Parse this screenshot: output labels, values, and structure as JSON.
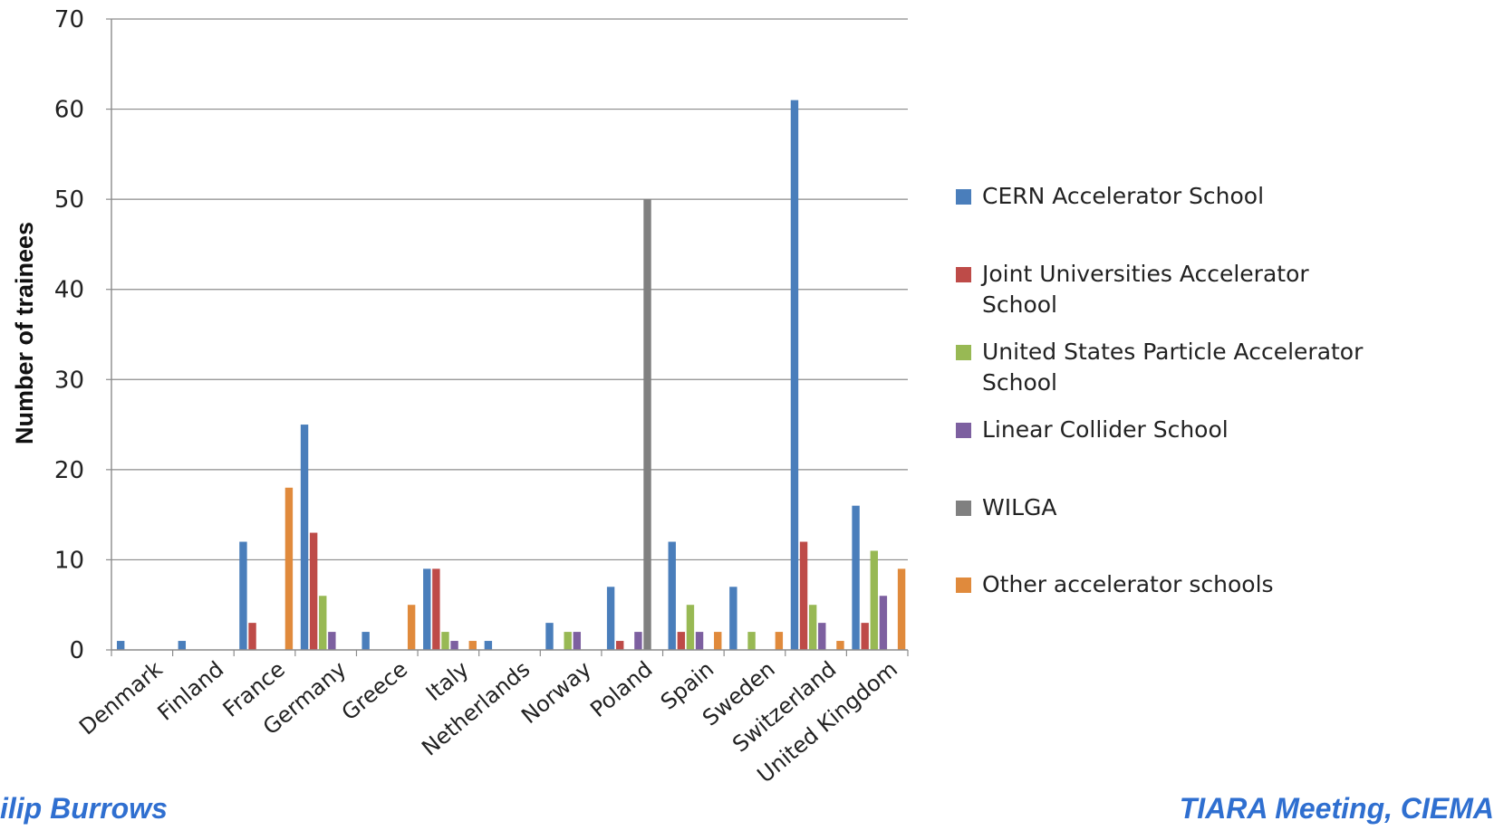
{
  "chart_data": {
    "type": "bar",
    "ylabel": "Number of trainees",
    "ylim": [
      0,
      70
    ],
    "yticks": [
      0,
      10,
      20,
      30,
      40,
      50,
      60,
      70
    ],
    "grid": true,
    "legend_position": "right",
    "categories": [
      "Denmark",
      "Finland",
      "France",
      "Germany",
      "Greece",
      "Italy",
      "Netherlands",
      "Norway",
      "Poland",
      "Spain",
      "Sweden",
      "Switzerland",
      "United Kingdom"
    ],
    "series": [
      {
        "name": "CERN Accelerator School",
        "color": "#4a7ebb",
        "values": [
          1,
          1,
          12,
          25,
          2,
          9,
          1,
          3,
          7,
          12,
          7,
          61,
          16
        ]
      },
      {
        "name": "Joint Universities Accelerator School",
        "color": "#be4b48",
        "values": [
          0,
          0,
          3,
          13,
          0,
          9,
          0,
          0,
          1,
          2,
          0,
          12,
          3
        ]
      },
      {
        "name": "United States Particle Accelerator School",
        "color": "#98b954",
        "values": [
          0,
          0,
          0,
          6,
          0,
          2,
          0,
          2,
          0,
          5,
          2,
          5,
          11
        ]
      },
      {
        "name": "Linear Collider School",
        "color": "#7d60a0",
        "values": [
          0,
          0,
          0,
          2,
          0,
          1,
          0,
          2,
          2,
          2,
          0,
          3,
          6
        ]
      },
      {
        "name": "WILGA",
        "color": "#808080",
        "values": [
          0,
          0,
          0,
          0,
          0,
          0,
          0,
          0,
          50,
          0,
          0,
          0,
          0
        ]
      },
      {
        "name": "Other accelerator schools",
        "color": "#e08a3c",
        "values": [
          0,
          0,
          18,
          0,
          5,
          1,
          0,
          0,
          0,
          2,
          2,
          1,
          9
        ]
      }
    ]
  },
  "footer": {
    "left": "ilip Burrows",
    "right": "TIARA Meeting, CIEMA"
  }
}
